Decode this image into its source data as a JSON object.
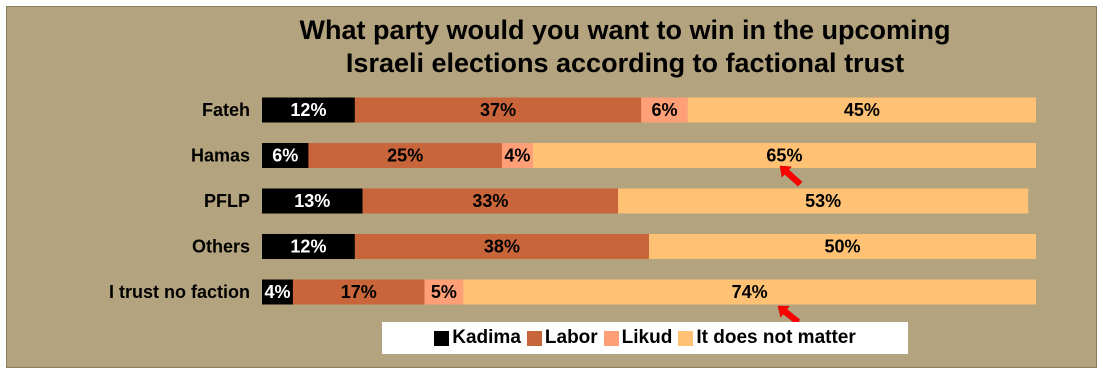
{
  "chart_data": {
    "type": "bar",
    "orientation": "horizontal",
    "stacked": true,
    "title": "What party would you want to win in the upcoming Israeli elections according to factional trust",
    "title_lines": [
      "What party would you want to win in the upcoming",
      "Israeli elections according to factional trust"
    ],
    "categories": [
      "Fateh",
      "Hamas",
      "PFLP",
      "Others",
      "I trust no faction"
    ],
    "series": [
      {
        "name": "Kadima",
        "color": "#000000",
        "label_color": "#ffffff",
        "values": [
          12,
          6,
          13,
          12,
          4
        ]
      },
      {
        "name": "Labor",
        "color": "#c8653a",
        "label_color": "#000000",
        "values": [
          37,
          25,
          33,
          38,
          17
        ]
      },
      {
        "name": "Likud",
        "color": "#ff9f78",
        "label_color": "#000000",
        "values": [
          6,
          4,
          0,
          0,
          5
        ]
      },
      {
        "name": "It does not matter",
        "color": "#ffc274",
        "label_color": "#000000",
        "values": [
          45,
          65,
          53,
          50,
          74
        ]
      }
    ],
    "value_suffix": "%",
    "xlim": [
      0,
      100
    ],
    "grid": false,
    "legend_position": "bottom",
    "annotations": [
      {
        "type": "arrow",
        "color": "#ff0000",
        "points_to": "Hamas — It does not matter (65%)"
      },
      {
        "type": "arrow",
        "color": "#ff0000",
        "points_to": "I trust no faction — It does not matter (74%)"
      }
    ]
  }
}
